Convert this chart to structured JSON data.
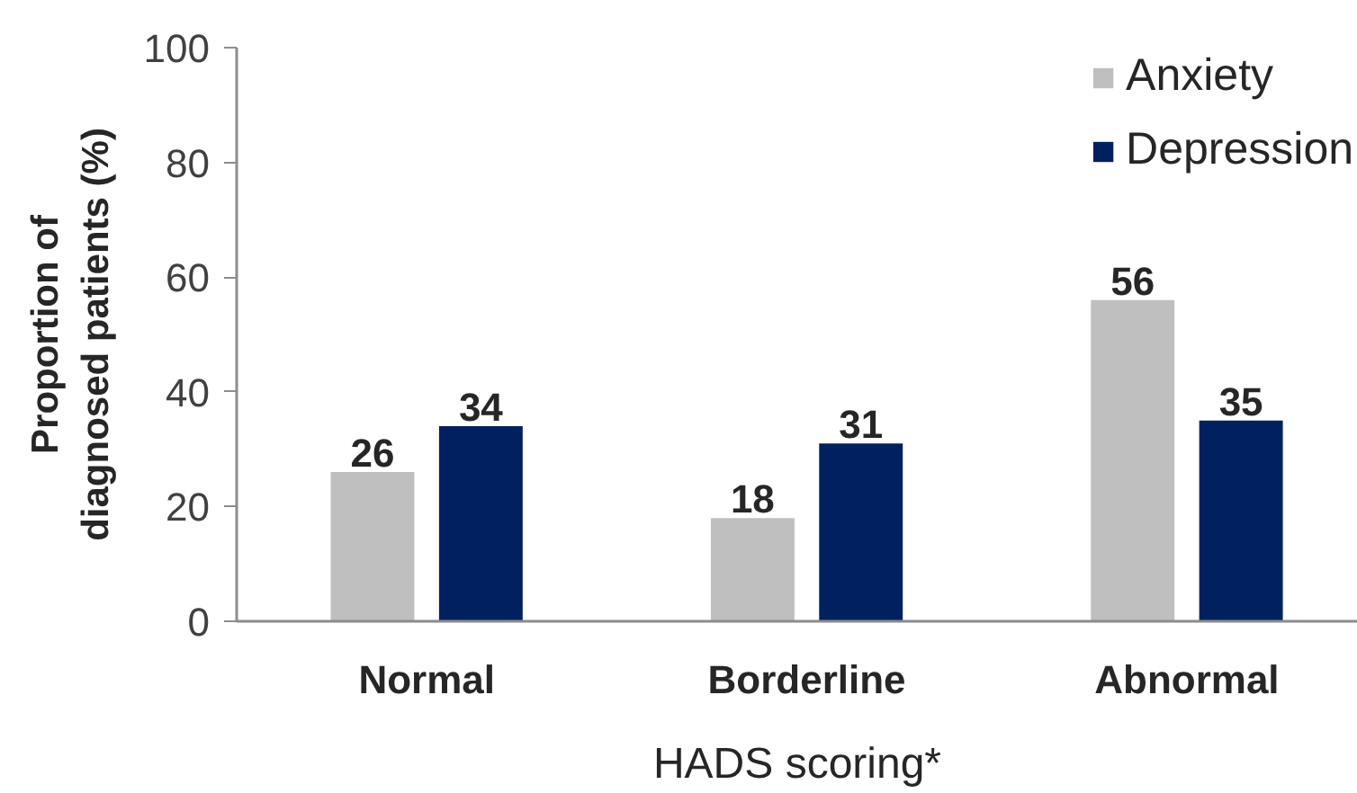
{
  "chart_data": {
    "type": "bar",
    "xlabel": "HADS scoring*",
    "ylabel": "Proportion of diagnosed patients (%)",
    "categories": [
      "Normal",
      "Borderline",
      "Abnormal"
    ],
    "series": [
      {
        "name": "Anxiety",
        "color": "#bfbfbf",
        "values": [
          26,
          18,
          56
        ]
      },
      {
        "name": "Depression",
        "color": "#002060",
        "values": [
          34,
          31,
          35
        ]
      }
    ],
    "ylim": [
      0,
      100
    ],
    "yticks": [
      0,
      20,
      40,
      60,
      80,
      100
    ],
    "data_labels": true,
    "legend": "top right"
  }
}
